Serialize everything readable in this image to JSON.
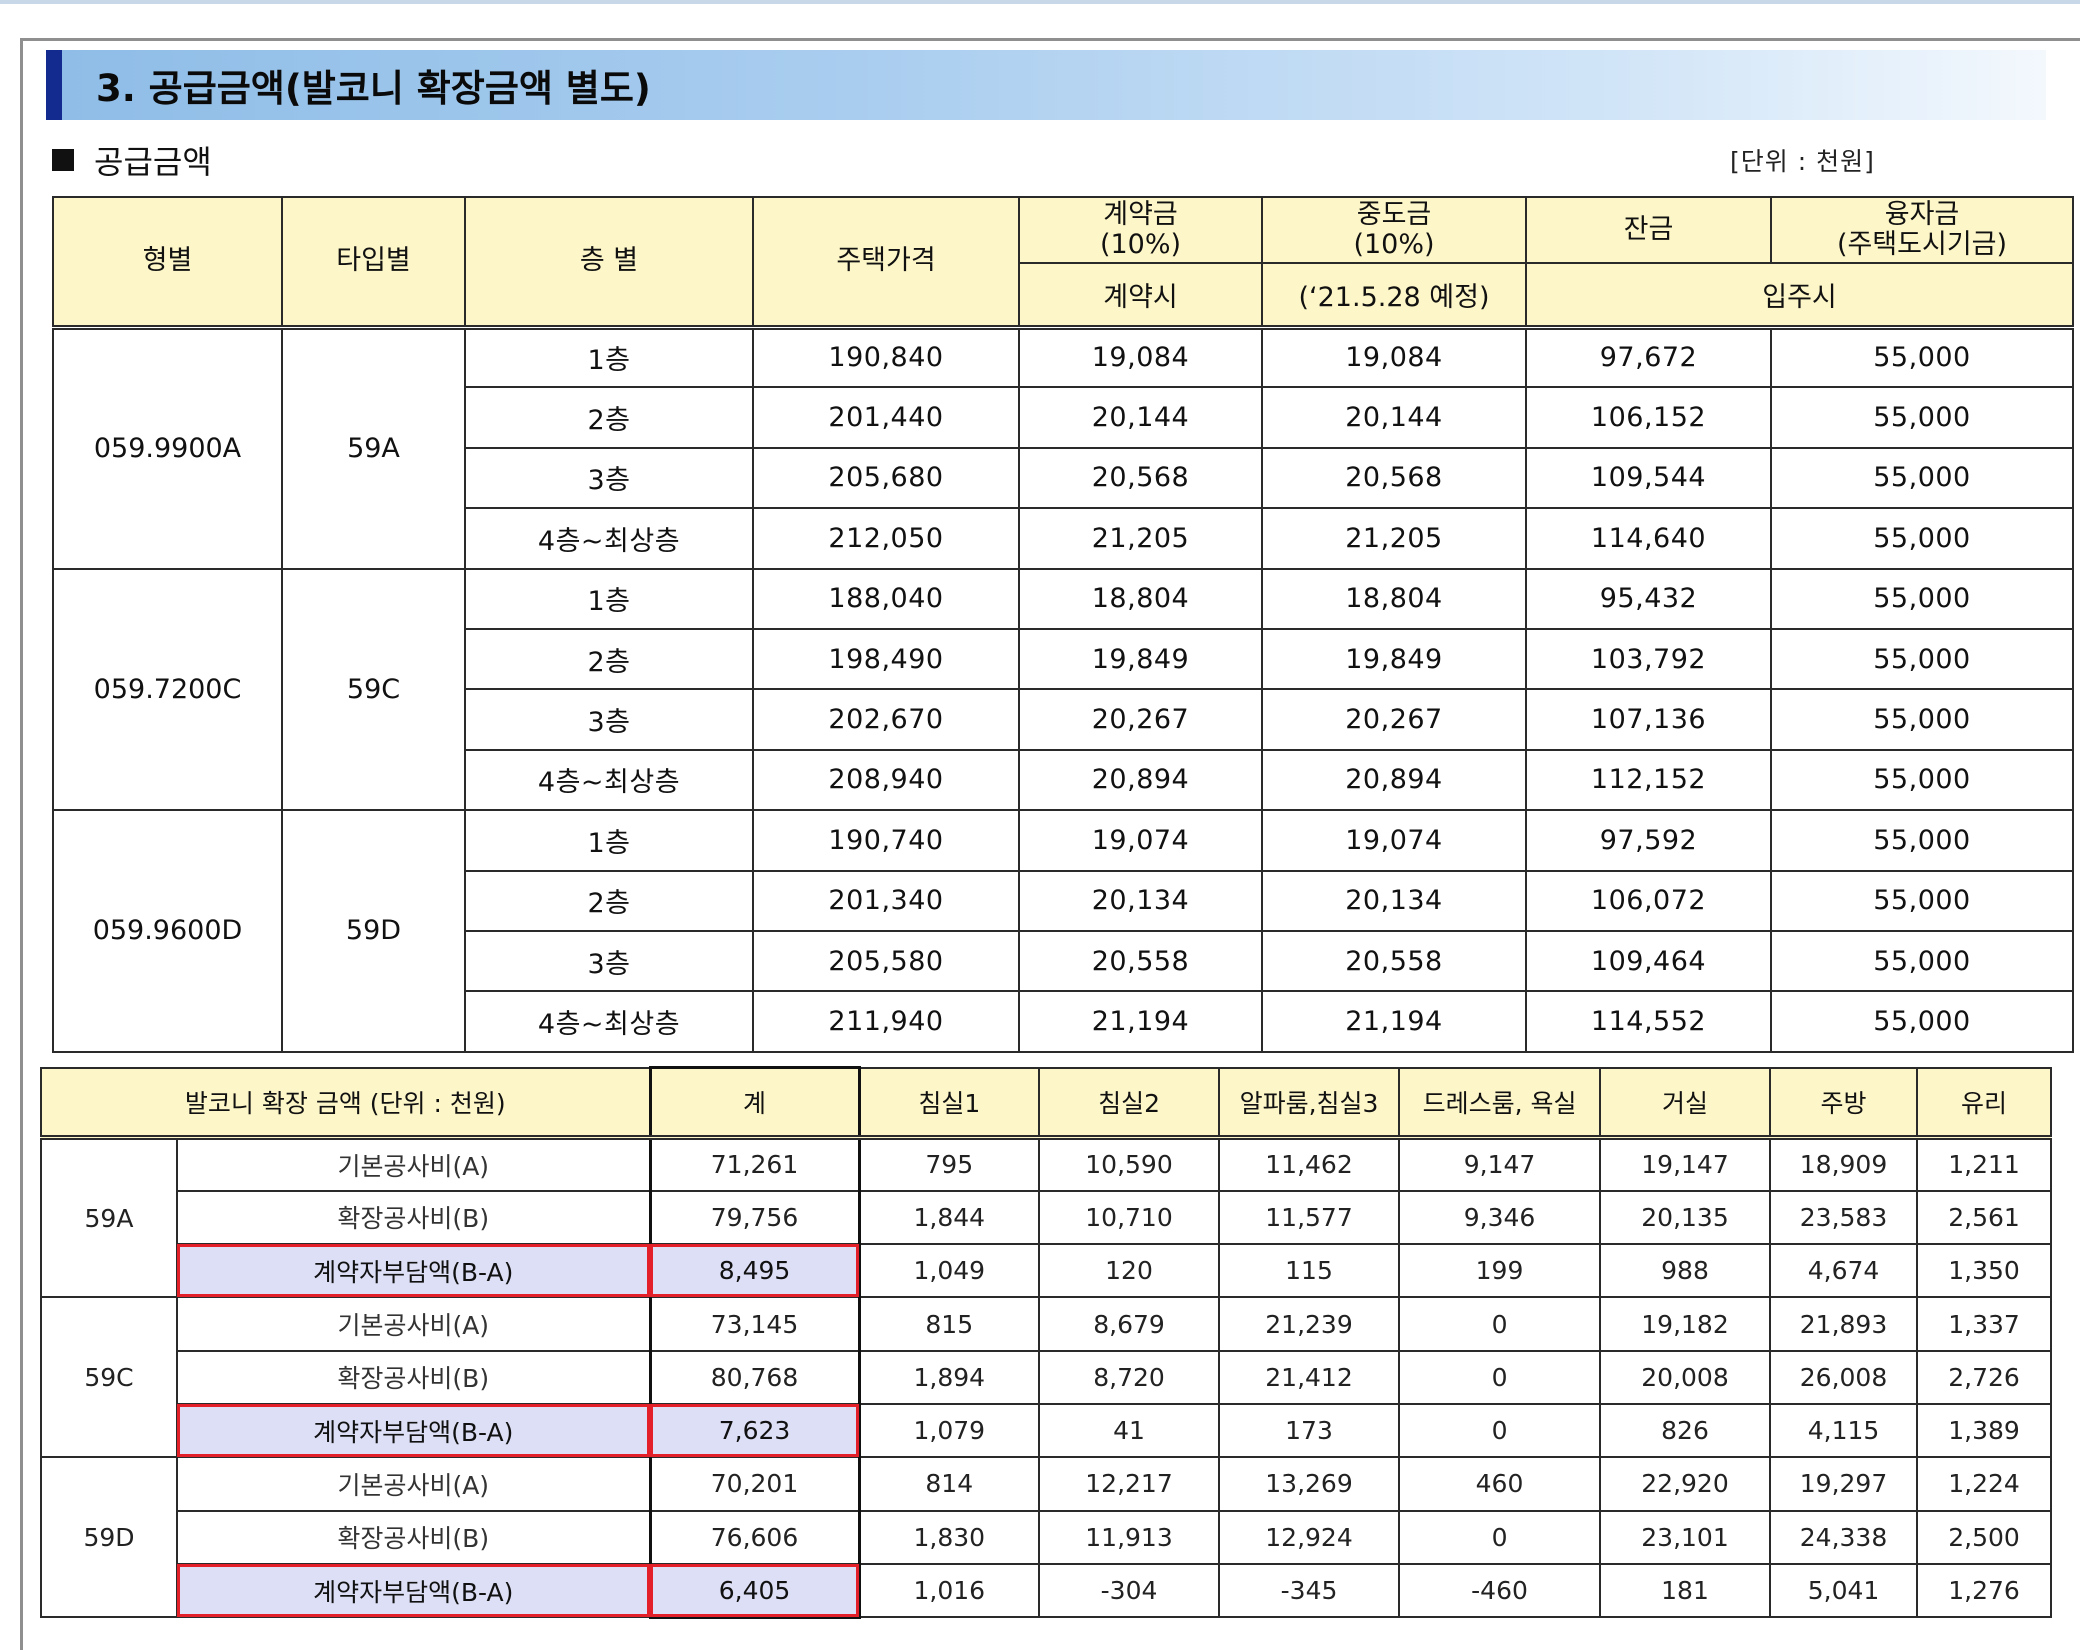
{
  "section_title": "3. 공급금액(발코니 확장금액 별도)",
  "sub_heading": "공급금액",
  "unit_label": "[단위 : 천원]",
  "supply": {
    "headers": {
      "type": "형별",
      "subtype": "타입별",
      "floor": "층 별",
      "price": "주택가격",
      "deposit_top": "계약금\n(10%)",
      "middle_top": "중도금\n(10%)",
      "balance_top": "잔금",
      "loan_top": "융자금\n(주택도시기금)",
      "deposit_bottom": "계약시",
      "middle_bottom": "(‘21.5.28 예정)",
      "movein_bottom": "입주시"
    },
    "groups": [
      {
        "type": "059.9900A",
        "subtype": "59A",
        "rows": [
          {
            "floor": "1층",
            "price": "190,840",
            "deposit": "19,084",
            "middle": "19,084",
            "balance": "97,672",
            "loan": "55,000"
          },
          {
            "floor": "2층",
            "price": "201,440",
            "deposit": "20,144",
            "middle": "20,144",
            "balance": "106,152",
            "loan": "55,000"
          },
          {
            "floor": "3층",
            "price": "205,680",
            "deposit": "20,568",
            "middle": "20,568",
            "balance": "109,544",
            "loan": "55,000"
          },
          {
            "floor": "4층~최상층",
            "price": "212,050",
            "deposit": "21,205",
            "middle": "21,205",
            "balance": "114,640",
            "loan": "55,000"
          }
        ]
      },
      {
        "type": "059.7200C",
        "subtype": "59C",
        "rows": [
          {
            "floor": "1층",
            "price": "188,040",
            "deposit": "18,804",
            "middle": "18,804",
            "balance": "95,432",
            "loan": "55,000"
          },
          {
            "floor": "2층",
            "price": "198,490",
            "deposit": "19,849",
            "middle": "19,849",
            "balance": "103,792",
            "loan": "55,000"
          },
          {
            "floor": "3층",
            "price": "202,670",
            "deposit": "20,267",
            "middle": "20,267",
            "balance": "107,136",
            "loan": "55,000"
          },
          {
            "floor": "4층~최상층",
            "price": "208,940",
            "deposit": "20,894",
            "middle": "20,894",
            "balance": "112,152",
            "loan": "55,000"
          }
        ]
      },
      {
        "type": "059.9600D",
        "subtype": "59D",
        "rows": [
          {
            "floor": "1층",
            "price": "190,740",
            "deposit": "19,074",
            "middle": "19,074",
            "balance": "97,592",
            "loan": "55,000"
          },
          {
            "floor": "2층",
            "price": "201,340",
            "deposit": "20,134",
            "middle": "20,134",
            "balance": "106,072",
            "loan": "55,000"
          },
          {
            "floor": "3층",
            "price": "205,580",
            "deposit": "20,558",
            "middle": "20,558",
            "balance": "109,464",
            "loan": "55,000"
          },
          {
            "floor": "4층~최상층",
            "price": "211,940",
            "deposit": "21,194",
            "middle": "21,194",
            "balance": "114,552",
            "loan": "55,000"
          }
        ]
      }
    ]
  },
  "balcony": {
    "headers": {
      "title": "발코니 확장 금액 (단위 : 천원)",
      "total": "계",
      "bed1": "침실1",
      "bed2": "침실2",
      "alpha": "알파룸,침실3",
      "dress": "드레스룸, 욕실",
      "living": "거실",
      "kitchen": "주방",
      "glass": "유리"
    },
    "groups": [
      {
        "type": "59A",
        "rows": [
          {
            "label": "기본공사비(A)",
            "total": "71,261",
            "bed1": "795",
            "bed2": "10,590",
            "alpha": "11,462",
            "dress": "9,147",
            "living": "19,147",
            "kitchen": "18,909",
            "glass": "1,211"
          },
          {
            "label": "확장공사비(B)",
            "total": "79,756",
            "bed1": "1,844",
            "bed2": "10,710",
            "alpha": "11,577",
            "dress": "9,346",
            "living": "20,135",
            "kitchen": "23,583",
            "glass": "2,561"
          },
          {
            "label": "계약자부담액(B-A)",
            "total": "8,495",
            "bed1": "1,049",
            "bed2": "120",
            "alpha": "115",
            "dress": "199",
            "living": "988",
            "kitchen": "4,674",
            "glass": "1,350"
          }
        ]
      },
      {
        "type": "59C",
        "rows": [
          {
            "label": "기본공사비(A)",
            "total": "73,145",
            "bed1": "815",
            "bed2": "8,679",
            "alpha": "21,239",
            "dress": "0",
            "living": "19,182",
            "kitchen": "21,893",
            "glass": "1,337"
          },
          {
            "label": "확장공사비(B)",
            "total": "80,768",
            "bed1": "1,894",
            "bed2": "8,720",
            "alpha": "21,412",
            "dress": "0",
            "living": "20,008",
            "kitchen": "26,008",
            "glass": "2,726"
          },
          {
            "label": "계약자부담액(B-A)",
            "total": "7,623",
            "bed1": "1,079",
            "bed2": "41",
            "alpha": "173",
            "dress": "0",
            "living": "826",
            "kitchen": "4,115",
            "glass": "1,389"
          }
        ]
      },
      {
        "type": "59D",
        "rows": [
          {
            "label": "기본공사비(A)",
            "total": "70,201",
            "bed1": "814",
            "bed2": "12,217",
            "alpha": "13,269",
            "dress": "460",
            "living": "22,920",
            "kitchen": "19,297",
            "glass": "1,224"
          },
          {
            "label": "확장공사비(B)",
            "total": "76,606",
            "bed1": "1,830",
            "bed2": "11,913",
            "alpha": "12,924",
            "dress": "0",
            "living": "23,101",
            "kitchen": "24,338",
            "glass": "2,500"
          },
          {
            "label": "계약자부담액(B-A)",
            "total": "6,405",
            "bed1": "1,016",
            "bed2": "-304",
            "alpha": "-345",
            "dress": "-460",
            "living": "181",
            "kitchen": "5,041",
            "glass": "1,276"
          }
        ]
      }
    ]
  },
  "colors": {
    "header_fill": "#fdf6c8",
    "title_band": "#a9cdef",
    "title_accent": "#132b8f",
    "share_row_fill": "#dcdff5",
    "share_outline": "#e3202a"
  }
}
